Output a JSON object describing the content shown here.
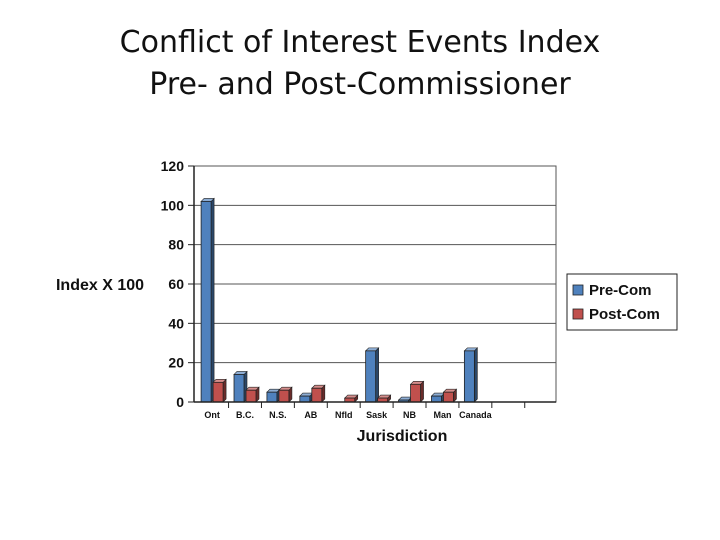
{
  "slide": {
    "title_line1": "Conflict of Interest Events Index",
    "title_line2": "Pre- and Post-Commissioner"
  },
  "chart_data": {
    "type": "bar",
    "title": "Conflict of Interest Events Index Pre- and Post-Commissioner",
    "xlabel": "Jurisdiction",
    "ylabel": "Index X 100",
    "ylim": [
      0,
      120
    ],
    "yticks": [
      0,
      20,
      40,
      60,
      80,
      100,
      120
    ],
    "grid": true,
    "legend_position": "right",
    "categories": [
      "Ont",
      "B.C.",
      "N.S.",
      "AB",
      "Nfld",
      "Sask",
      "NB",
      "Man",
      "Canada",
      ""
    ],
    "series": [
      {
        "name": "Pre-Com",
        "color": "#4f81bd",
        "values": [
          102,
          14,
          5,
          3,
          0,
          26,
          1,
          3,
          26,
          0
        ]
      },
      {
        "name": "Post-Com",
        "color": "#c0504d",
        "values": [
          10,
          6,
          6,
          7,
          2,
          2,
          9,
          5,
          0,
          0
        ]
      }
    ]
  }
}
